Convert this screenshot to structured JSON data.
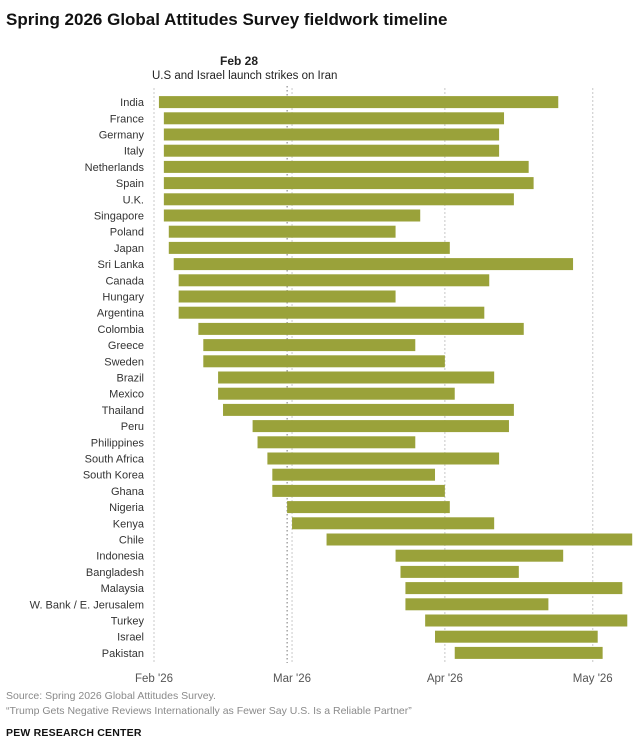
{
  "title": "Spring 2026 Global Attitudes Survey fieldwork timeline",
  "annotation": {
    "date": "Feb 28",
    "text": "U.S and Israel launch strikes on Iran"
  },
  "footer": {
    "source": "Source: Spring 2026 Global Attitudes Survey.",
    "report": "“Trump Gets Negative Reviews Internationally as Fewer Say U.S. Is a Reliable Partner”",
    "brand": "PEW RESEARCH CENTER"
  },
  "colors": {
    "bar": "#9aa23a",
    "grid": "#c8c8c8",
    "annotation_line": "#777777"
  },
  "chart_data": {
    "type": "gantt",
    "x_axis": {
      "type": "date",
      "ticks": [
        "Feb '26",
        "Mar '26",
        "Apr '26",
        "May '26"
      ],
      "tick_dates": [
        "2026-02-01",
        "2026-03-01",
        "2026-04-01",
        "2026-05-01"
      ],
      "range": [
        "2026-02-01",
        "2026-05-11"
      ]
    },
    "reference_line": {
      "date": "2026-02-28"
    },
    "rows": [
      {
        "country": "India",
        "start": "2026-02-02",
        "end": "2026-04-24"
      },
      {
        "country": "France",
        "start": "2026-02-03",
        "end": "2026-04-13"
      },
      {
        "country": "Germany",
        "start": "2026-02-03",
        "end": "2026-04-12"
      },
      {
        "country": "Italy",
        "start": "2026-02-03",
        "end": "2026-04-12"
      },
      {
        "country": "Netherlands",
        "start": "2026-02-03",
        "end": "2026-04-18"
      },
      {
        "country": "Spain",
        "start": "2026-02-03",
        "end": "2026-04-19"
      },
      {
        "country": "U.K.",
        "start": "2026-02-03",
        "end": "2026-04-15"
      },
      {
        "country": "Singapore",
        "start": "2026-02-03",
        "end": "2026-03-27"
      },
      {
        "country": "Poland",
        "start": "2026-02-04",
        "end": "2026-03-22"
      },
      {
        "country": "Japan",
        "start": "2026-02-04",
        "end": "2026-03-33"
      },
      {
        "country": "Sri Lanka",
        "start": "2026-02-05",
        "end": "2026-04-27"
      },
      {
        "country": "Canada",
        "start": "2026-02-06",
        "end": "2026-04-10"
      },
      {
        "country": "Hungary",
        "start": "2026-02-06",
        "end": "2026-03-22"
      },
      {
        "country": "Argentina",
        "start": "2026-02-06",
        "end": "2026-04-09"
      },
      {
        "country": "Colombia",
        "start": "2026-02-10",
        "end": "2026-04-17"
      },
      {
        "country": "Greece",
        "start": "2026-02-11",
        "end": "2026-03-26"
      },
      {
        "country": "Sweden",
        "start": "2026-02-11",
        "end": "2026-04-01"
      },
      {
        "country": "Brazil",
        "start": "2026-02-14",
        "end": "2026-04-11"
      },
      {
        "country": "Mexico",
        "start": "2026-02-14",
        "end": "2026-04-03"
      },
      {
        "country": "Thailand",
        "start": "2026-02-15",
        "end": "2026-04-15"
      },
      {
        "country": "Peru",
        "start": "2026-02-21",
        "end": "2026-04-14"
      },
      {
        "country": "Philippines",
        "start": "2026-02-22",
        "end": "2026-03-26"
      },
      {
        "country": "South Africa",
        "start": "2026-02-24",
        "end": "2026-04-12"
      },
      {
        "country": "South Korea",
        "start": "2026-02-25",
        "end": "2026-03-30"
      },
      {
        "country": "Ghana",
        "start": "2026-02-25",
        "end": "2026-04-01"
      },
      {
        "country": "Nigeria",
        "start": "2026-02-28",
        "end": "2026-04-02"
      },
      {
        "country": "Kenya",
        "start": "2026-03-01",
        "end": "2026-04-11"
      },
      {
        "country": "Chile",
        "start": "2026-03-08",
        "end": "2026-05-09"
      },
      {
        "country": "Indonesia",
        "start": "2026-03-22",
        "end": "2026-04-25"
      },
      {
        "country": "Bangladesh",
        "start": "2026-03-23",
        "end": "2026-04-16"
      },
      {
        "country": "Malaysia",
        "start": "2026-03-24",
        "end": "2026-05-07"
      },
      {
        "country": "W. Bank / E. Jerusalem",
        "start": "2026-03-24",
        "end": "2026-04-22"
      },
      {
        "country": "Turkey",
        "start": "2026-03-28",
        "end": "2026-05-08"
      },
      {
        "country": "Israel",
        "start": "2026-03-30",
        "end": "2026-05-02"
      },
      {
        "country": "Pakistan",
        "start": "2026-04-03",
        "end": "2026-05-03"
      }
    ]
  }
}
